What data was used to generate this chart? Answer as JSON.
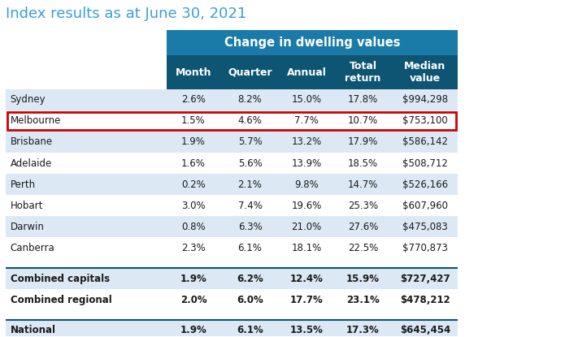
{
  "title": "Index results as at June 30, 2021",
  "title_color": "#3a9fd5",
  "header_group": "Change in dwelling values",
  "header_group_bg": "#1a7aa8",
  "header_group_color": "#ffffff",
  "col_header_bg": "#0d5572",
  "col_header_color": "#ffffff",
  "columns": [
    "Month",
    "Quarter",
    "Annual",
    "Total\nreturn",
    "Median\nvalue"
  ],
  "rows": [
    {
      "city": "Sydney",
      "vals": [
        "2.6%",
        "8.2%",
        "15.0%",
        "17.8%",
        "$994,298"
      ],
      "highlight": false,
      "bold": false,
      "separator_before": false
    },
    {
      "city": "Melbourne",
      "vals": [
        "1.5%",
        "4.6%",
        "7.7%",
        "10.7%",
        "$753,100"
      ],
      "highlight": true,
      "bold": false,
      "separator_before": false
    },
    {
      "city": "Brisbane",
      "vals": [
        "1.9%",
        "5.7%",
        "13.2%",
        "17.9%",
        "$586,142"
      ],
      "highlight": false,
      "bold": false,
      "separator_before": false
    },
    {
      "city": "Adelaide",
      "vals": [
        "1.6%",
        "5.6%",
        "13.9%",
        "18.5%",
        "$508,712"
      ],
      "highlight": false,
      "bold": false,
      "separator_before": false
    },
    {
      "city": "Perth",
      "vals": [
        "0.2%",
        "2.1%",
        "9.8%",
        "14.7%",
        "$526,166"
      ],
      "highlight": false,
      "bold": false,
      "separator_before": false
    },
    {
      "city": "Hobart",
      "vals": [
        "3.0%",
        "7.4%",
        "19.6%",
        "25.3%",
        "$607,960"
      ],
      "highlight": false,
      "bold": false,
      "separator_before": false
    },
    {
      "city": "Darwin",
      "vals": [
        "0.8%",
        "6.3%",
        "21.0%",
        "27.6%",
        "$475,083"
      ],
      "highlight": false,
      "bold": false,
      "separator_before": false
    },
    {
      "city": "Canberra",
      "vals": [
        "2.3%",
        "6.1%",
        "18.1%",
        "22.5%",
        "$770,873"
      ],
      "highlight": false,
      "bold": false,
      "separator_before": false
    },
    {
      "city": "Combined capitals",
      "vals": [
        "1.9%",
        "6.2%",
        "12.4%",
        "15.9%",
        "$727,427"
      ],
      "highlight": false,
      "bold": true,
      "separator_before": true
    },
    {
      "city": "Combined regional",
      "vals": [
        "2.0%",
        "6.0%",
        "17.7%",
        "23.1%",
        "$478,212"
      ],
      "highlight": false,
      "bold": true,
      "separator_before": false
    },
    {
      "city": "National",
      "vals": [
        "1.9%",
        "6.1%",
        "13.5%",
        "17.3%",
        "$645,454"
      ],
      "highlight": false,
      "bold": true,
      "separator_before": true
    }
  ],
  "row_bg_even": "#dce9f5",
  "row_bg_odd": "#ffffff",
  "highlight_border_color": "#cc0000",
  "separator_color": "#0d5572",
  "fig_bg": "#ffffff",
  "font_size_title": 13,
  "font_size_header": 9,
  "font_size_cell": 8.5
}
